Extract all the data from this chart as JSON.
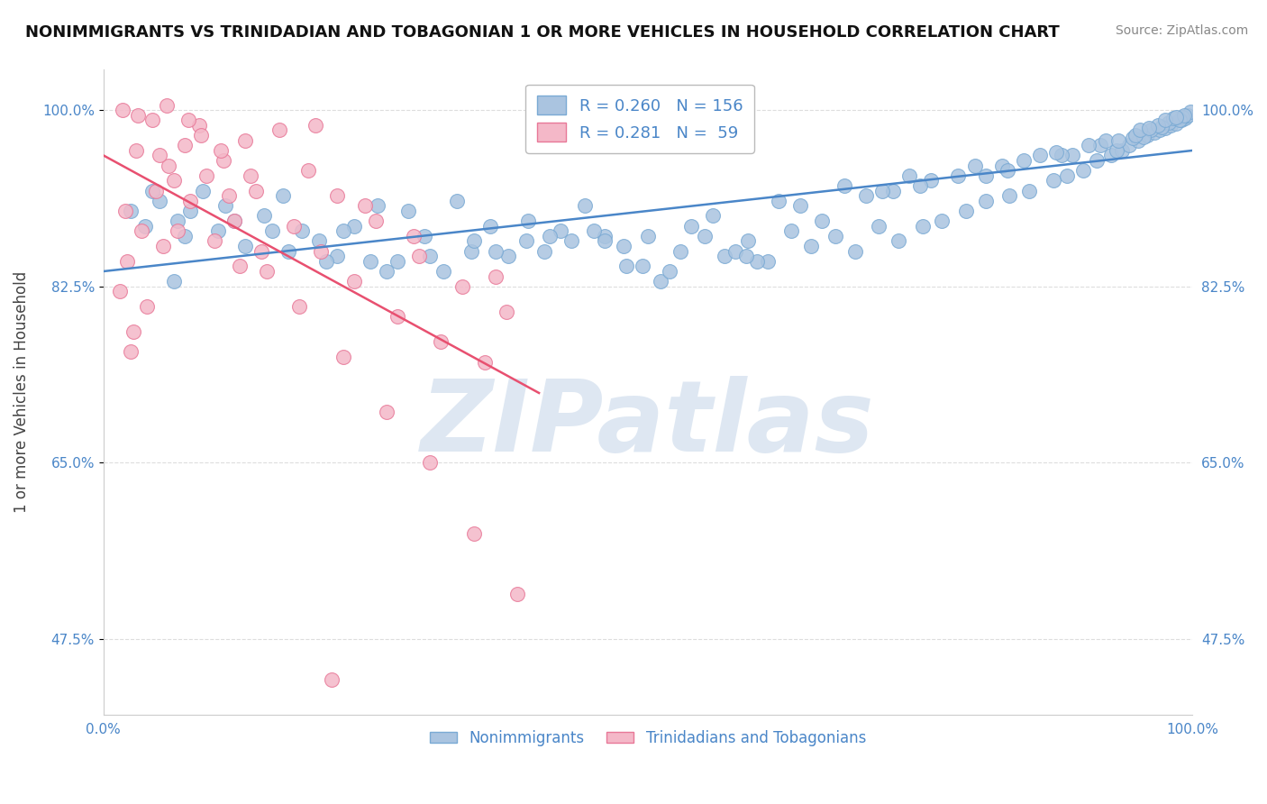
{
  "title": "NONIMMIGRANTS VS TRINIDADIAN AND TOBAGONIAN 1 OR MORE VEHICLES IN HOUSEHOLD CORRELATION CHART",
  "source": "Source: ZipAtlas.com",
  "ylabel": "1 or more Vehicles in Household",
  "xlim": [
    0.0,
    100.0
  ],
  "ylim": [
    40.0,
    104.0
  ],
  "yticks": [
    47.5,
    65.0,
    82.5,
    100.0
  ],
  "ytick_labels": [
    "47.5%",
    "65.0%",
    "82.5%",
    "100.0%"
  ],
  "xticks": [
    0.0,
    100.0
  ],
  "xtick_labels": [
    "0.0%",
    "100.0%"
  ],
  "legend_labels": [
    "Nonimmigrants",
    "Trinidadians and Tobagonians"
  ],
  "R_blue": 0.26,
  "N_blue": 156,
  "R_pink": 0.281,
  "N_pink": 59,
  "blue_color": "#aac4e0",
  "blue_edge": "#7aaad4",
  "pink_color": "#f4b8c8",
  "pink_edge": "#e87898",
  "blue_line_color": "#4a86c8",
  "pink_line_color": "#e85070",
  "tick_color": "#4a86c8",
  "watermark": "ZIPatlas",
  "watermark_color": "#c8d8ea",
  "background_color": "#ffffff",
  "grid_color": "#dddddd",
  "blue_x": [
    2.5,
    3.8,
    5.2,
    6.8,
    7.5,
    9.1,
    10.5,
    11.2,
    13.0,
    14.8,
    16.5,
    18.2,
    19.8,
    21.5,
    23.0,
    25.2,
    27.0,
    29.5,
    31.2,
    33.8,
    35.5,
    37.2,
    38.8,
    40.5,
    42.0,
    44.2,
    46.0,
    47.8,
    49.5,
    51.2,
    53.0,
    55.2,
    57.0,
    59.2,
    61.0,
    63.2,
    65.0,
    67.2,
    69.0,
    71.2,
    73.0,
    75.2,
    77.0,
    79.2,
    81.0,
    83.2,
    85.0,
    87.2,
    88.5,
    90.0,
    91.2,
    92.5,
    93.5,
    94.2,
    95.0,
    95.8,
    96.5,
    97.0,
    97.5,
    98.0,
    98.5,
    99.0,
    99.3,
    99.6,
    99.8,
    4.5,
    8.0,
    12.0,
    17.0,
    22.0,
    28.0,
    34.0,
    39.0,
    45.0,
    50.0,
    56.0,
    62.0,
    68.0,
    74.0,
    80.0,
    86.0,
    91.5,
    94.5,
    96.2,
    97.8,
    99.1,
    6.5,
    15.5,
    24.5,
    32.5,
    43.0,
    52.0,
    60.0,
    70.0,
    76.0,
    82.5,
    89.0,
    93.0,
    95.5,
    97.2,
    98.8,
    20.5,
    36.0,
    48.0,
    58.0,
    66.0,
    72.5,
    78.5,
    84.5,
    90.5,
    94.8,
    96.8,
    98.2,
    30.0,
    41.0,
    54.0,
    64.0,
    75.0,
    83.0,
    88.0,
    92.0,
    95.2,
    97.5,
    99.2,
    26.0,
    46.0,
    59.0,
    71.5,
    81.0,
    87.5,
    93.2,
    96.0,
    98.5
  ],
  "blue_y": [
    90.0,
    88.5,
    91.0,
    89.0,
    87.5,
    92.0,
    88.0,
    90.5,
    86.5,
    89.5,
    91.5,
    88.0,
    87.0,
    85.5,
    88.5,
    90.5,
    85.0,
    87.5,
    84.0,
    86.0,
    88.5,
    85.5,
    87.0,
    86.0,
    88.0,
    90.5,
    87.5,
    86.5,
    84.5,
    83.0,
    86.0,
    87.5,
    85.5,
    87.0,
    85.0,
    88.0,
    86.5,
    87.5,
    86.0,
    88.5,
    87.0,
    88.5,
    89.0,
    90.0,
    91.0,
    91.5,
    92.0,
    93.0,
    93.5,
    94.0,
    95.0,
    95.5,
    96.0,
    96.5,
    97.0,
    97.5,
    97.8,
    98.0,
    98.2,
    98.5,
    98.7,
    99.0,
    99.2,
    99.5,
    99.8,
    92.0,
    90.0,
    89.0,
    86.0,
    88.0,
    90.0,
    87.0,
    89.0,
    88.0,
    87.5,
    89.5,
    91.0,
    92.5,
    93.5,
    94.5,
    95.5,
    96.5,
    97.2,
    98.0,
    98.8,
    99.3,
    83.0,
    88.0,
    85.0,
    91.0,
    87.0,
    84.0,
    85.0,
    91.5,
    93.0,
    94.5,
    95.5,
    96.0,
    97.3,
    98.3,
    99.0,
    85.0,
    86.0,
    84.5,
    86.0,
    89.0,
    92.0,
    93.5,
    95.0,
    96.5,
    97.5,
    98.5,
    99.2,
    85.5,
    87.5,
    88.5,
    90.5,
    92.5,
    94.0,
    95.5,
    97.0,
    98.0,
    99.0,
    99.5,
    84.0,
    87.0,
    85.5,
    92.0,
    93.5,
    95.8,
    97.0,
    98.2,
    99.3
  ],
  "pink_x": [
    1.5,
    2.2,
    2.8,
    3.5,
    4.0,
    4.8,
    5.5,
    6.0,
    6.8,
    7.5,
    8.0,
    8.8,
    9.5,
    10.2,
    11.0,
    12.0,
    13.0,
    14.0,
    15.0,
    16.2,
    17.5,
    18.8,
    20.0,
    21.5,
    23.0,
    25.0,
    27.0,
    29.0,
    31.0,
    33.0,
    35.0,
    37.0,
    2.0,
    3.0,
    4.5,
    6.5,
    9.0,
    11.5,
    14.5,
    18.0,
    22.0,
    26.0,
    30.0,
    34.0,
    38.0,
    1.8,
    3.2,
    5.2,
    7.8,
    10.8,
    13.5,
    19.5,
    24.0,
    28.5,
    36.0,
    2.5,
    5.8,
    12.5,
    21.0
  ],
  "pink_y": [
    82.0,
    85.0,
    78.0,
    88.0,
    80.5,
    92.0,
    86.5,
    94.5,
    88.0,
    96.5,
    91.0,
    98.5,
    93.5,
    87.0,
    95.0,
    89.0,
    97.0,
    92.0,
    84.0,
    98.0,
    88.5,
    94.0,
    86.0,
    91.5,
    83.0,
    89.0,
    79.5,
    85.5,
    77.0,
    82.5,
    75.0,
    80.0,
    90.0,
    96.0,
    99.0,
    93.0,
    97.5,
    91.5,
    86.0,
    80.5,
    75.5,
    70.0,
    65.0,
    58.0,
    52.0,
    100.0,
    99.5,
    95.5,
    99.0,
    96.0,
    93.5,
    98.5,
    90.5,
    87.5,
    83.5,
    76.0,
    100.5,
    84.5,
    43.5
  ]
}
